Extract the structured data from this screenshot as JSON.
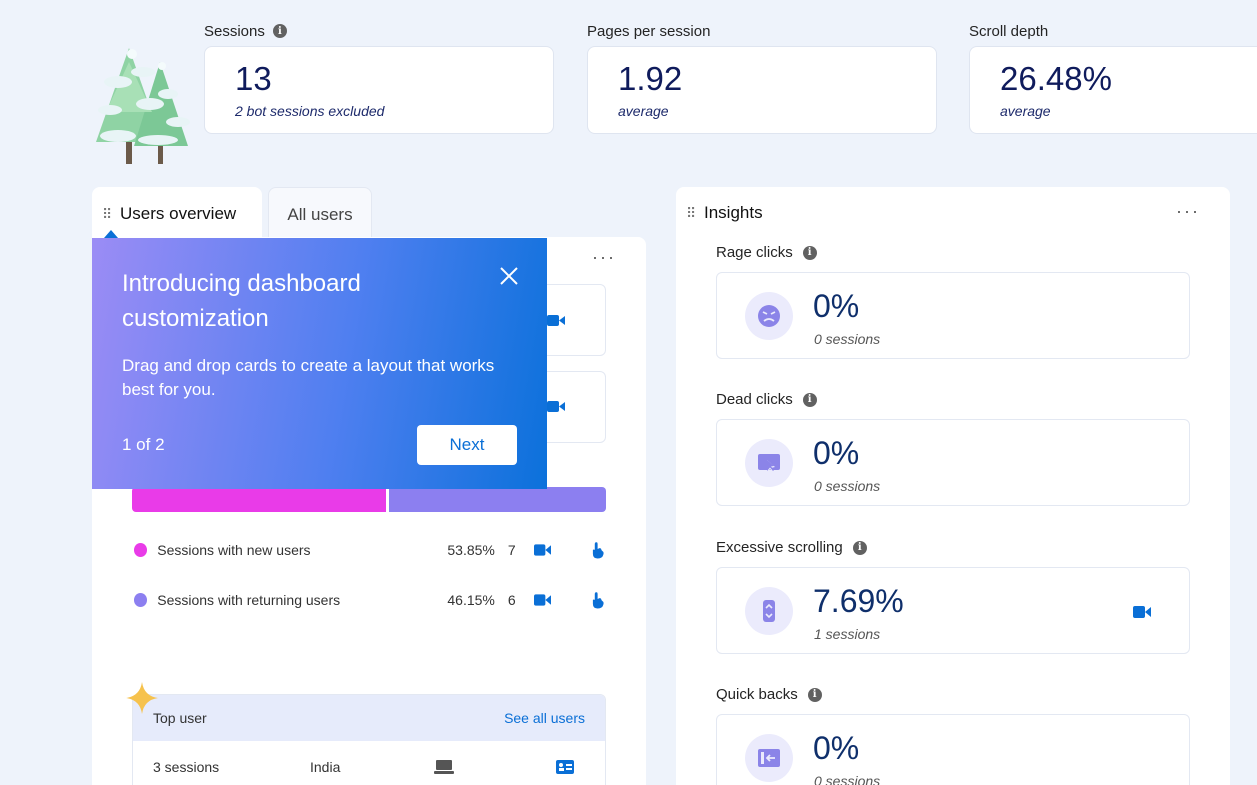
{
  "metrics": [
    {
      "label": "Sessions",
      "value": "13",
      "sub": "2 bot sessions excluded",
      "has_info": true
    },
    {
      "label": "Pages per session",
      "value": "1.92",
      "sub": "average",
      "has_info": false
    },
    {
      "label": "Scroll depth",
      "value": "26.48%",
      "sub": "average",
      "has_info": false
    }
  ],
  "left_panel": {
    "tabs": [
      {
        "label": "Users overview",
        "active": true
      },
      {
        "label": "All users",
        "active": false
      }
    ],
    "more_icon": "more-horizontal-icon",
    "legend": [
      {
        "label": "Sessions with new users",
        "percent": "53.85%",
        "count": "7",
        "color": "#e93be8"
      },
      {
        "label": "Sessions with returning users",
        "percent": "46.15%",
        "count": "6",
        "color": "#8c7ff0"
      }
    ],
    "split_bar": {
      "new_fraction": 0.5385,
      "returning_fraction": 0.4615
    },
    "top_user": {
      "title": "Top user",
      "see_all": "See all users",
      "sessions": "3 sessions",
      "country": "India",
      "device_icon": "laptop-icon",
      "card_icon": "contact-card-icon"
    }
  },
  "popover": {
    "title": "Introducing dashboard customization",
    "body": "Drag and drop cards to create a layout that works best for you.",
    "step": "1 of 2",
    "next_label": "Next",
    "close_icon": "close-icon"
  },
  "insights": {
    "title": "Insights",
    "more_icon": "more-horizontal-icon",
    "items": [
      {
        "label": "Rage clicks",
        "value": "0%",
        "sub": "0 sessions",
        "icon": "angry-face-icon",
        "has_recording": false
      },
      {
        "label": "Dead clicks",
        "value": "0%",
        "sub": "0 sessions",
        "icon": "dead-click-icon",
        "has_recording": false
      },
      {
        "label": "Excessive scrolling",
        "value": "7.69%",
        "sub": "1 sessions",
        "icon": "scroll-icon",
        "has_recording": true
      },
      {
        "label": "Quick backs",
        "value": "0%",
        "sub": "0 sessions",
        "icon": "quick-back-icon",
        "has_recording": false
      }
    ]
  },
  "colors": {
    "accent": "#0a6fd6",
    "new_users": "#e93be8",
    "returning_users": "#8c7ff0",
    "metric_value": "#0f1b5c"
  }
}
